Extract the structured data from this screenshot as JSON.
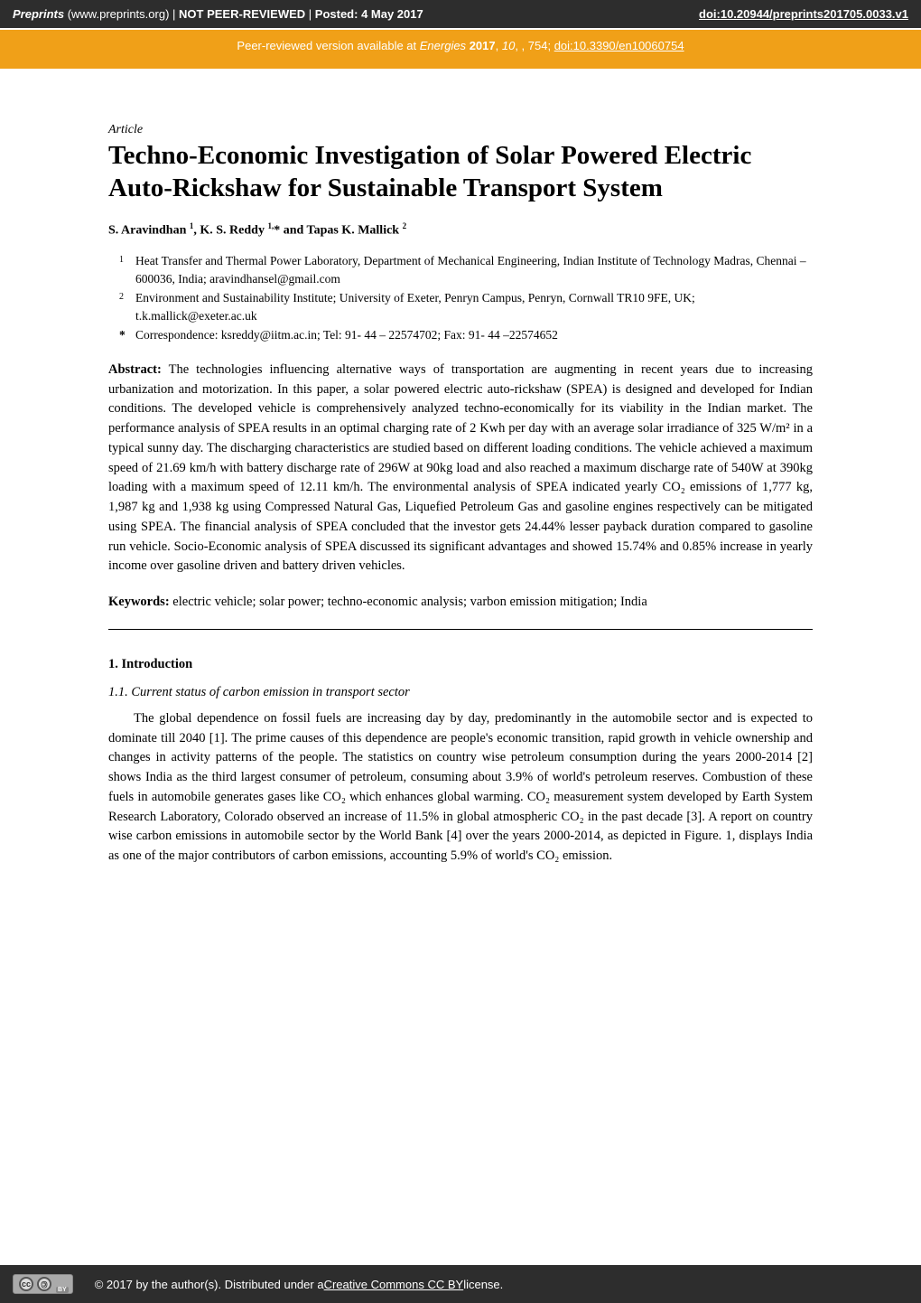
{
  "header": {
    "site": "Preprints",
    "url": "(www.preprints.org)",
    "not_peer_reviewed": "NOT PEER-REVIEWED",
    "posted": "Posted: 4 May 2017",
    "doi": "doi:10.20944/preprints201705.0033.v1"
  },
  "orange": {
    "prefix": "Peer-reviewed version available at ",
    "journal": "Energies",
    "year": "2017",
    "vol": "10",
    "pages": "754",
    "doi": "doi:10.3390/en10060754"
  },
  "article_type": "Article",
  "title": "Techno-Economic Investigation of Solar Powered Electric Auto-Rickshaw for Sustainable Transport System",
  "authors_html": "S. Aravindhan ¹, K. S. Reddy ¹,* and Tapas K. Mallick ²",
  "affiliations": [
    {
      "num": "1",
      "text": "Heat Transfer and Thermal Power Laboratory, Department of Mechanical Engineering, Indian Institute of Technology Madras, Chennai – 600036, India; aravindhansel@gmail.com"
    },
    {
      "num": "2",
      "text": "Environment and Sustainability Institute; University of Exeter, Penryn Campus, Penryn, Cornwall TR10 9FE, UK; t.k.mallick@exeter.ac.uk"
    },
    {
      "num": "*",
      "text": "Correspondence: ksreddy@iitm.ac.in; Tel: 91- 44 – 22574702; Fax: 91- 44 –22574652"
    }
  ],
  "abstract_label": "Abstract:",
  "abstract_text": "The technologies influencing alternative ways of transportation are augmenting in recent years due to increasing urbanization and motorization. In this paper, a solar powered electric auto-rickshaw (SPEA) is designed and developed for Indian conditions. The developed vehicle is comprehensively analyzed techno-economically for its viability in the Indian market. The performance analysis of SPEA results in an optimal charging rate of 2 Kwh per day with an average solar irradiance of 325 W/m² in a typical sunny day. The discharging characteristics are studied based on different loading conditions. The vehicle achieved a maximum speed of 21.69 km/h with battery discharge rate of 296W at 90kg load and also reached a maximum discharge rate of 540W at 390kg loading with a maximum speed of 12.11 km/h. The environmental analysis of SPEA indicated yearly CO₂ emissions of 1,777 kg, 1,987 kg and 1,938 kg using Compressed Natural Gas, Liquefied Petroleum Gas and gasoline engines respectively can be mitigated using SPEA. The financial analysis of SPEA concluded that the investor gets 24.44% lesser payback duration compared to gasoline run vehicle. Socio-Economic analysis of SPEA discussed its significant advantages and showed 15.74% and 0.85% increase in yearly income over gasoline driven and battery driven vehicles.",
  "keywords_label": "Keywords:",
  "keywords_text": "electric vehicle; solar power; techno-economic analysis; varbon emission mitigation; India",
  "section1": "1. Introduction",
  "subsection11": "1.1. Current status of carbon emission in transport sector",
  "body1": "The global dependence on fossil fuels are increasing day by day, predominantly in the automobile sector and is expected to dominate till 2040 [1]. The prime causes of this dependence are people's economic transition, rapid growth in vehicle ownership and changes in activity patterns of the people. The statistics on country wise petroleum consumption during the years 2000-2014 [2] shows India as the third largest consumer of petroleum, consuming about 3.9% of world's petroleum reserves. Combustion of these fuels in automobile generates gases like CO₂ which enhances global warming. CO₂ measurement system developed by Earth System Research Laboratory, Colorado observed an increase of 11.5% in global atmospheric CO₂ in the past decade [3]. A report on country wise carbon emissions in automobile sector by the World Bank [4] over the years 2000-2014, as depicted in Figure. 1, displays India as one of the major contributors of carbon emissions, accounting 5.9% of world's CO₂ emission.",
  "footer": {
    "copyright": "©  2017 by the author(s). Distributed under a ",
    "license": "Creative Commons CC BY",
    "suffix": " license."
  }
}
